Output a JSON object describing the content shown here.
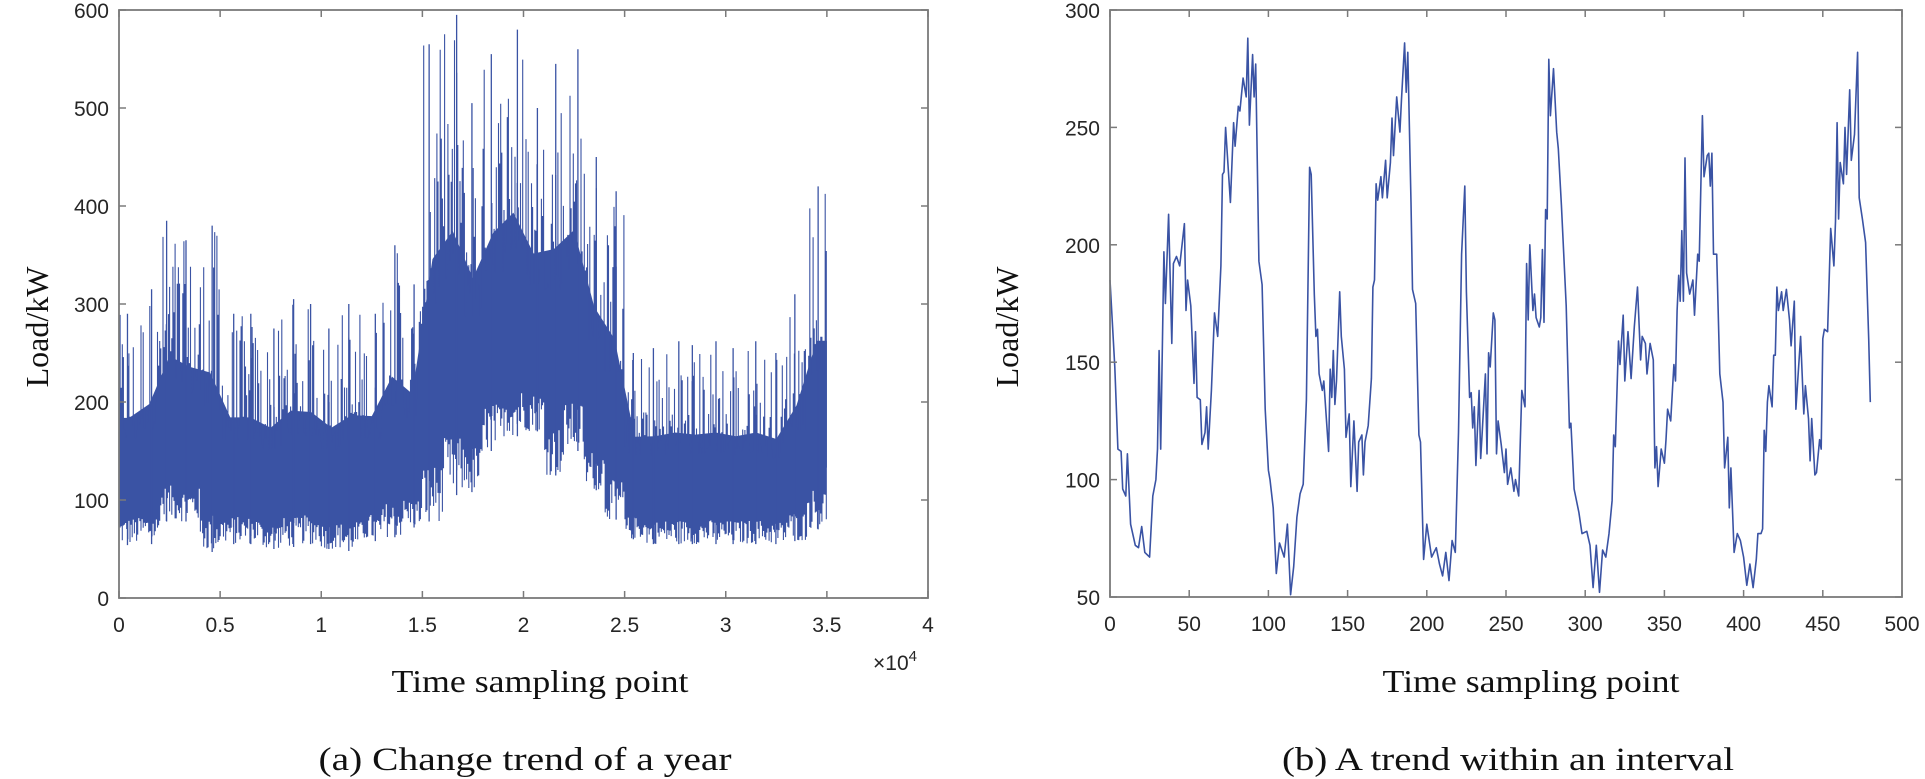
{
  "colors": {
    "line": "#3a53a4",
    "axis": "#7a7a7a",
    "text": "#262626"
  },
  "chart_data": [
    {
      "type": "line",
      "panel": "a",
      "caption": "(a) Change trend of a year",
      "xlabel": "Time sampling point",
      "ylabel": "Load/kW",
      "x_multiplier_label": "×10",
      "x_multiplier_exp": "4",
      "xlim": [
        0,
        4
      ],
      "ylim": [
        0,
        600
      ],
      "xticks": [
        "0",
        "0.5",
        "1",
        "1.5",
        "2",
        "2.5",
        "3",
        "3.5",
        "4"
      ],
      "yticks": [
        "0",
        "100",
        "200",
        "300",
        "400",
        "500",
        "600"
      ],
      "note": "dense series of ~35000 points summarized as min/max envelope per 0.1×10^4 bin",
      "envelope": {
        "bin_start": [
          0,
          0.1,
          0.2,
          0.3,
          0.4,
          0.5,
          0.6,
          0.7,
          0.8,
          0.9,
          1.0,
          1.1,
          1.2,
          1.3,
          1.4,
          1.5,
          1.6,
          1.7,
          1.8,
          1.9,
          2.0,
          2.1,
          2.2,
          2.3,
          2.4,
          2.5,
          2.6,
          2.7,
          2.8,
          2.9,
          3.0,
          3.1,
          3.2,
          3.3,
          3.4
        ],
        "max": [
          290,
          315,
          385,
          365,
          380,
          290,
          290,
          275,
          305,
          300,
          275,
          300,
          290,
          360,
          320,
          565,
          595,
          505,
          555,
          580,
          500,
          545,
          560,
          450,
          415,
          250,
          255,
          262,
          258,
          262,
          255,
          262,
          250,
          310,
          420
        ],
        "min": [
          54,
          55,
          78,
          78,
          47,
          55,
          55,
          50,
          52,
          55,
          50,
          48,
          58,
          62,
          72,
          78,
          105,
          108,
          150,
          165,
          170,
          125,
          150,
          110,
          80,
          60,
          55,
          55,
          55,
          55,
          55,
          55,
          55,
          58,
          70
        ]
      }
    },
    {
      "type": "line",
      "panel": "b",
      "caption": "(b) A trend within an interval",
      "xlabel": "Time sampling point",
      "ylabel": "Load/kW",
      "xlim": [
        0,
        500
      ],
      "ylim": [
        50,
        300
      ],
      "xticks": [
        "0",
        "50",
        "100",
        "150",
        "200",
        "250",
        "300",
        "350",
        "400",
        "450",
        "500"
      ],
      "yticks": [
        "50",
        "100",
        "150",
        "200",
        "250",
        "300"
      ],
      "x": [
        0,
        3,
        5,
        7,
        8,
        10,
        11,
        13,
        16,
        18,
        20,
        22,
        25,
        27,
        29,
        30,
        31,
        32,
        34,
        35,
        37,
        39,
        40,
        42,
        44,
        47,
        48,
        49,
        51,
        53,
        54,
        55,
        57,
        58,
        60,
        61,
        62,
        64,
        66,
        68,
        70,
        71,
        72,
        73,
        76,
        78,
        79,
        81,
        82,
        84,
        86,
        87,
        88,
        90,
        91,
        92,
        94,
        96,
        98,
        100,
        101,
        103,
        105,
        107,
        110,
        112,
        114,
        116,
        118,
        120,
        122,
        124,
        126,
        127,
        129,
        130,
        131,
        132,
        134,
        135,
        138,
        139,
        140,
        141,
        142,
        143,
        145,
        146,
        148,
        149,
        151,
        152,
        154,
        156,
        157,
        159,
        160,
        161,
        163,
        165,
        166,
        167,
        168,
        169,
        171,
        172,
        174,
        175,
        177,
        178,
        179,
        181,
        183,
        184,
        186,
        187,
        188,
        190,
        191,
        193,
        195,
        196,
        198,
        200,
        203,
        206,
        208,
        210,
        212,
        214,
        216,
        218,
        220,
        222,
        224,
        225,
        227,
        228,
        229,
        230,
        231,
        233,
        234,
        235,
        237,
        238,
        239,
        240,
        242,
        243,
        244,
        245,
        247,
        249,
        250,
        251,
        253,
        255,
        256,
        258,
        260,
        262,
        263,
        264,
        265,
        267,
        268,
        269,
        271,
        272,
        273,
        274,
        275,
        276,
        277,
        278,
        280,
        282,
        283,
        285,
        288,
        290,
        291,
        293,
        296,
        298,
        301,
        303,
        305,
        307,
        309,
        311,
        313,
        315,
        317,
        318,
        319,
        321,
        322,
        324,
        325,
        327,
        329,
        331,
        333,
        335,
        336,
        338,
        339,
        341,
        343,
        344,
        345,
        346,
        348,
        350,
        351,
        352,
        354,
        356,
        357,
        358,
        359,
        360,
        361,
        362,
        363,
        364,
        366,
        368,
        369,
        371,
        372,
        374,
        375,
        377,
        378,
        379,
        380,
        381,
        383,
        385,
        387,
        388,
        390,
        391,
        392,
        394,
        396,
        398,
        400,
        402,
        404,
        406,
        408,
        409,
        411,
        412,
        413,
        414,
        415,
        416,
        418,
        419,
        420,
        421,
        422,
        424,
        425,
        427,
        429,
        430,
        432,
        433,
        436,
        438,
        439,
        441,
        442,
        443,
        445,
        446,
        448,
        449,
        450,
        451,
        453,
        455,
        457,
        458,
        459,
        460,
        461,
        463,
        464,
        465,
        467,
        468,
        470,
        472,
        473,
        475,
        477,
        479,
        480
      ],
      "y": [
        185,
        148,
        113,
        112,
        96,
        93,
        111,
        81,
        72,
        71,
        80,
        69,
        67,
        93,
        100,
        113,
        155,
        113,
        197,
        175,
        213,
        158,
        192,
        195,
        191,
        209,
        172,
        185,
        174,
        141,
        163,
        135,
        134,
        115,
        120,
        131,
        113,
        138,
        171,
        161,
        191,
        230,
        231,
        250,
        218,
        252,
        242,
        259,
        257,
        271,
        263,
        288,
        251,
        281,
        263,
        277,
        193,
        183,
        130,
        104,
        100,
        88,
        60,
        73,
        67,
        81,
        51,
        63,
        84,
        94,
        98,
        134,
        233,
        230,
        179,
        161,
        164,
        145,
        138,
        142,
        112,
        147,
        135,
        155,
        132,
        142,
        180,
        161,
        147,
        118,
        128,
        97,
        125,
        95,
        116,
        119,
        102,
        116,
        123,
        143,
        182,
        185,
        226,
        219,
        229,
        220,
        236,
        220,
        235,
        254,
        238,
        263,
        248,
        262,
        286,
        265,
        282,
        218,
        181,
        175,
        119,
        116,
        66,
        81,
        67,
        71,
        64,
        59,
        69,
        57,
        74,
        69,
        120,
        196,
        225,
        180,
        135,
        137,
        122,
        131,
        106,
        138,
        109,
        120,
        145,
        111,
        154,
        148,
        171,
        168,
        111,
        125,
        115,
        103,
        113,
        98,
        105,
        95,
        100,
        93,
        138,
        131,
        192,
        168,
        200,
        172,
        179,
        169,
        165,
        169,
        198,
        167,
        215,
        211,
        279,
        255,
        275,
        248,
        241,
        217,
        174,
        122,
        124,
        96,
        86,
        77,
        78,
        72,
        54,
        72,
        52,
        70,
        67,
        77,
        91,
        119,
        114,
        159,
        149,
        170,
        142,
        163,
        143,
        165,
        182,
        151,
        161,
        158,
        145,
        158,
        151,
        105,
        114,
        97,
        113,
        107,
        117,
        130,
        125,
        149,
        142,
        172,
        187,
        176,
        206,
        176,
        237,
        188,
        179,
        185,
        170,
        196,
        193,
        255,
        229,
        238,
        239,
        225,
        239,
        196,
        196,
        145,
        133,
        105,
        118,
        88,
        105,
        69,
        77,
        74,
        67,
        55,
        64,
        54,
        66,
        77,
        77,
        79,
        121,
        112,
        133,
        140,
        131,
        153,
        153,
        182,
        172,
        180,
        172,
        181,
        168,
        157,
        176,
        130,
        161,
        128,
        140,
        126,
        108,
        126,
        102,
        103,
        117,
        113,
        160,
        164,
        163,
        207,
        191,
        210,
        252,
        211,
        235,
        226,
        250,
        230,
        266,
        236,
        247,
        282,
        220,
        211,
        201,
        160,
        133
      ]
    }
  ]
}
